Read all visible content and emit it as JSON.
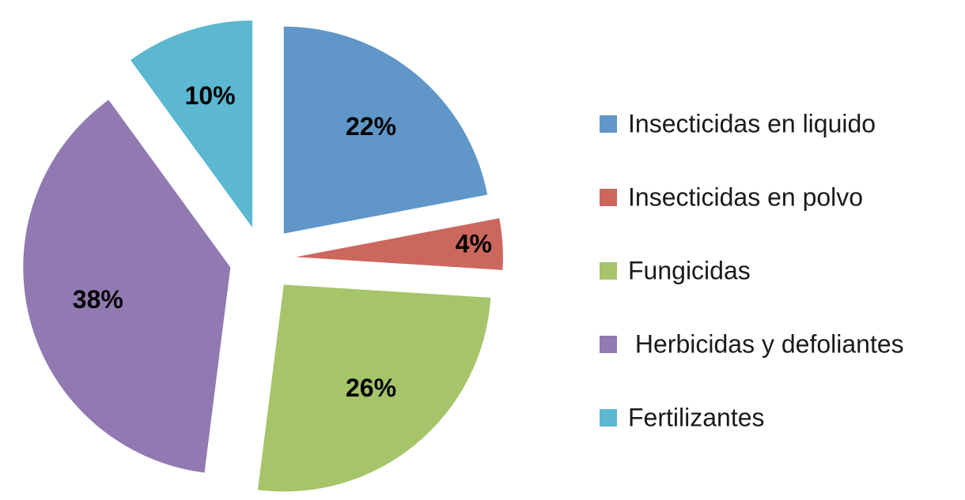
{
  "chart_data": {
    "type": "pie",
    "categories": [
      "Insecticidas en liquido",
      "Insecticidas en polvo",
      "Fungicidas",
      " Herbicidas y defoliantes",
      "Fertilizantes"
    ],
    "values": [
      22,
      4,
      26,
      38,
      10
    ],
    "value_labels": [
      "22%",
      "4%",
      "26%",
      "38%",
      "10%"
    ],
    "colors": [
      "#6096c8",
      "#cc675e",
      "#a6c46a",
      "#9179b1",
      "#5bb8d0"
    ],
    "legend": "right"
  }
}
